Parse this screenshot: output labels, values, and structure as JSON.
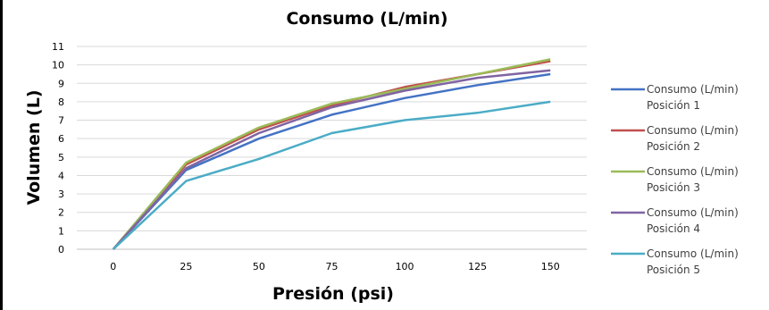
{
  "chart_data": {
    "type": "line",
    "title": "Consumo (L/min)",
    "xlabel": "Presión (psi)",
    "ylabel": "Volumen (L)",
    "x": [
      0,
      25,
      50,
      75,
      100,
      125,
      150
    ],
    "ylim": [
      0,
      11
    ],
    "yticks": [
      0,
      1,
      2,
      3,
      4,
      5,
      6,
      7,
      8,
      9,
      10,
      11
    ],
    "grid": true,
    "legend_position": "right",
    "series": [
      {
        "name": "Consumo (L/min) Posición 1",
        "color": "#4472C4",
        "values": [
          0,
          4.3,
          6.0,
          7.3,
          8.2,
          8.9,
          9.5
        ]
      },
      {
        "name": "Consumo (L/min) Posición 2",
        "color": "#C0504D",
        "values": [
          0,
          4.6,
          6.5,
          7.8,
          8.8,
          9.5,
          10.2
        ]
      },
      {
        "name": "Consumo (L/min) Posición 3",
        "color": "#9BBB59",
        "values": [
          0,
          4.7,
          6.6,
          7.9,
          8.7,
          9.5,
          10.3
        ]
      },
      {
        "name": "Consumo (L/min) Posición 4",
        "color": "#8064A2",
        "values": [
          0,
          4.4,
          6.3,
          7.7,
          8.6,
          9.3,
          9.7
        ]
      },
      {
        "name": "Consumo (L/min) Posición 5",
        "color": "#4BACC6",
        "values": [
          0,
          3.7,
          4.9,
          6.3,
          7.0,
          7.4,
          8.0
        ]
      }
    ]
  }
}
